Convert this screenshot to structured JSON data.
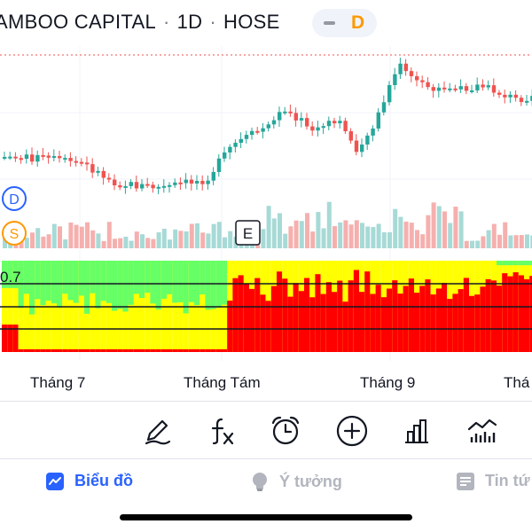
{
  "header": {
    "symbol_name": "AMBOO CAPITAL",
    "interval": "1D",
    "exchange": "HOSE",
    "separator": "·",
    "badge_letter": "D",
    "badge_color": "#ff9800"
  },
  "markers": {
    "dividend": "D",
    "split": "S",
    "earnings": "E"
  },
  "indicator": {
    "level_label": "0.7"
  },
  "x_axis": {
    "labels": [
      "Tháng 7",
      "Tháng Tám",
      "Tháng 9",
      "Thá"
    ]
  },
  "toolbar": {
    "items": [
      "pencil-icon",
      "formula-fx-icon",
      "alarm-clock-icon",
      "add-circle-icon",
      "bar-chart-icon",
      "indicators-icon"
    ]
  },
  "tabs": [
    {
      "label": "Biểu đồ",
      "icon": "chart-icon",
      "active": true
    },
    {
      "label": "Ý tưởng",
      "icon": "lightbulb-icon",
      "active": false
    },
    {
      "label": "Tin tứ",
      "icon": "news-icon",
      "active": false
    }
  ],
  "colors": {
    "up": "#26a69a",
    "down": "#ef5350",
    "volume_up": "#a7dad6",
    "volume_down": "#f5b0ae",
    "active_tab": "#2962ff",
    "inactive_tab": "#b2b5be",
    "indicator_red": "#ff0000",
    "indicator_yellow": "#ffff00",
    "indicator_green": "#66ff66"
  }
}
